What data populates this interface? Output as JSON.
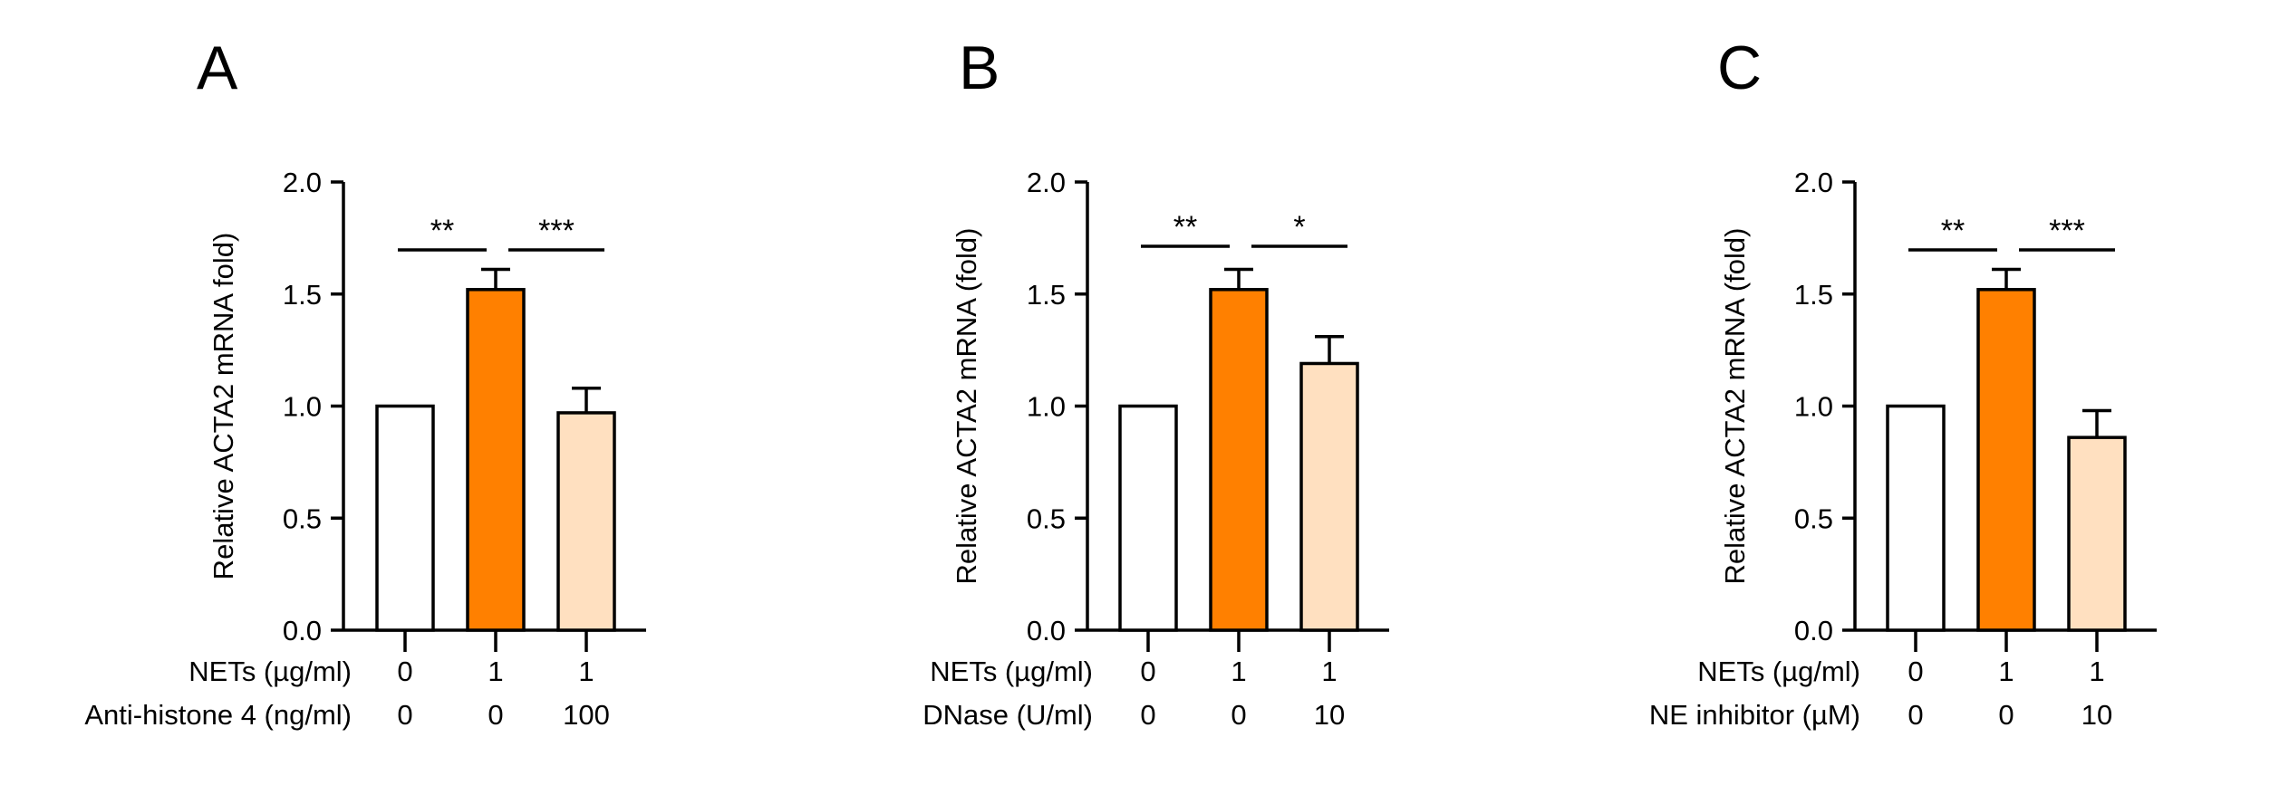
{
  "chart_data": [
    {
      "panel_label": "A",
      "type": "bar",
      "ylabel": "Relative ACTA2 mRNA fold)",
      "ylim": [
        0,
        2.0
      ],
      "yticks": [
        "0.0",
        "0.5",
        "1.0",
        "1.5",
        "2.0"
      ],
      "values": [
        1.0,
        1.52,
        0.97
      ],
      "errors": [
        0,
        0.09,
        0.11
      ],
      "fill_colors": [
        "#ffffff",
        "#ff8000",
        "#ffe0c0"
      ],
      "row_labels": [
        "NETs (µg/ml)",
        "Anti-histone 4 (ng/ml)"
      ],
      "rows": [
        [
          "0",
          "1",
          "1"
        ],
        [
          "0",
          "0",
          "100"
        ]
      ],
      "significance": [
        {
          "from": 0,
          "to": 1,
          "label": "**"
        },
        {
          "from": 1,
          "to": 2,
          "label": "***"
        }
      ]
    },
    {
      "panel_label": "B",
      "type": "bar",
      "ylabel": "Relative ACTA2 mRNA (fold)",
      "ylim": [
        0,
        2.0
      ],
      "yticks": [
        "0.0",
        "0.5",
        "1.0",
        "1.5",
        "2.0"
      ],
      "values": [
        1.0,
        1.52,
        1.19
      ],
      "errors": [
        0,
        0.09,
        0.12
      ],
      "fill_colors": [
        "#ffffff",
        "#ff8000",
        "#ffe0c0"
      ],
      "row_labels": [
        "NETs (µg/ml)",
        "DNase (U/ml)"
      ],
      "rows": [
        [
          "0",
          "1",
          "1"
        ],
        [
          "0",
          "0",
          "10"
        ]
      ],
      "significance": [
        {
          "from": 0,
          "to": 1,
          "label": "**"
        },
        {
          "from": 1,
          "to": 2,
          "label": "*"
        }
      ]
    },
    {
      "panel_label": "C",
      "type": "bar",
      "ylabel": "Relative ACTA2 mRNA (fold)",
      "ylim": [
        0,
        2.0
      ],
      "yticks": [
        "0.0",
        "0.5",
        "1.0",
        "1.5",
        "2.0"
      ],
      "values": [
        1.0,
        1.52,
        0.86
      ],
      "errors": [
        0,
        0.09,
        0.12
      ],
      "fill_colors": [
        "#ffffff",
        "#ff8000",
        "#ffe0c0"
      ],
      "row_labels": [
        "NETs (µg/ml)",
        "NE inhibitor (µM)"
      ],
      "rows": [
        [
          "0",
          "1",
          "1"
        ],
        [
          "0",
          "0",
          "10"
        ]
      ],
      "significance": [
        {
          "from": 0,
          "to": 1,
          "label": "**"
        },
        {
          "from": 1,
          "to": 2,
          "label": "***"
        }
      ]
    }
  ]
}
